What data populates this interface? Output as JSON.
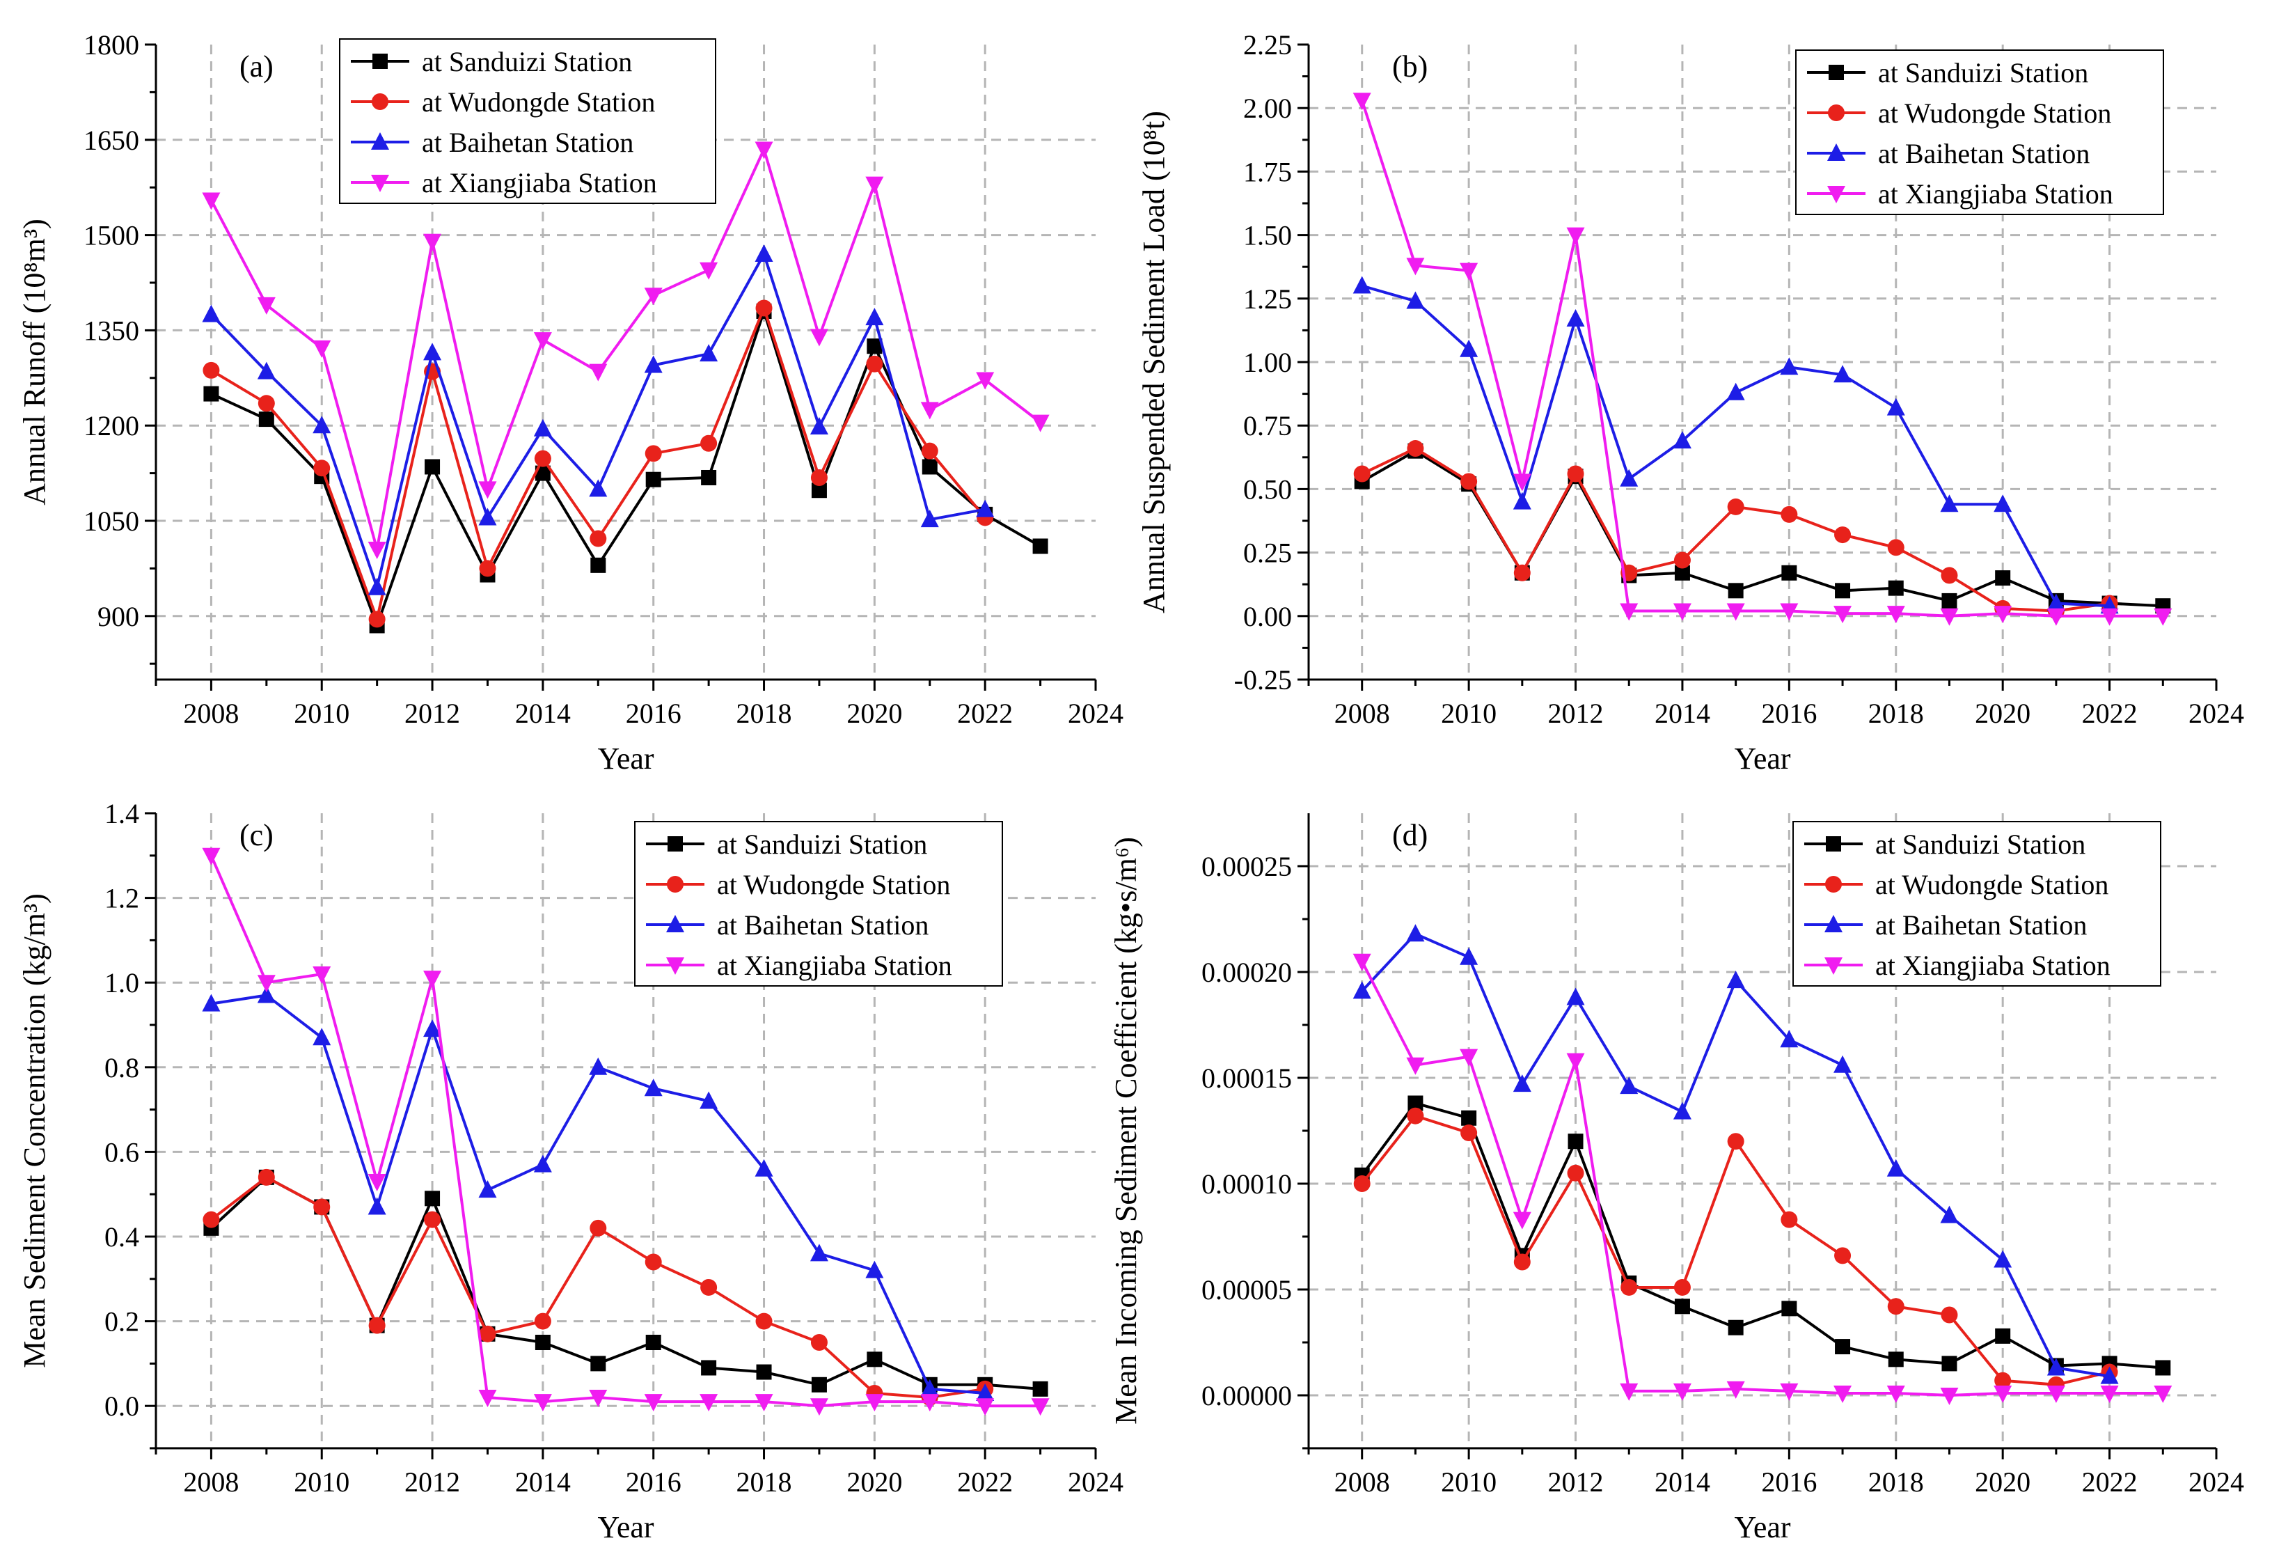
{
  "chart_data": [
    {
      "panel": "(a)",
      "type": "line",
      "xlabel": "Year",
      "ylabel": "Annual Runoff (10⁸m³)",
      "xlim": [
        2007,
        2024
      ],
      "ylim": [
        800,
        1800
      ],
      "xticks": [
        2008,
        2010,
        2012,
        2014,
        2016,
        2018,
        2020,
        2022,
        2024
      ],
      "yticks": [
        900,
        1050,
        1200,
        1350,
        1500,
        1650,
        1800
      ],
      "ytick_labels": [
        "900",
        "1050",
        "1200",
        "1350",
        "1500",
        "1650",
        "1800"
      ],
      "grid": true,
      "legend_position": "top-left",
      "series": [
        {
          "name": "at Sanduizi Station",
          "color": "#000000",
          "marker": "square",
          "x": [
            2008,
            2009,
            2010,
            2011,
            2012,
            2013,
            2014,
            2015,
            2016,
            2017,
            2018,
            2019,
            2020,
            2021,
            2022,
            2023
          ],
          "y": [
            1250,
            1210,
            1120,
            885,
            1135,
            965,
            1125,
            980,
            1115,
            1118,
            1380,
            1098,
            1325,
            1135,
            1060,
            1010
          ]
        },
        {
          "name": "at Wudongde Station",
          "color": "#e8221b",
          "marker": "circle",
          "x": [
            2008,
            2009,
            2010,
            2011,
            2012,
            2013,
            2014,
            2015,
            2016,
            2017,
            2018,
            2019,
            2020,
            2021,
            2022
          ],
          "y": [
            1287,
            1235,
            1133,
            895,
            1285,
            975,
            1148,
            1022,
            1156,
            1172,
            1385,
            1118,
            1297,
            1160,
            1055
          ]
        },
        {
          "name": "at Baihetan Station",
          "color": "#1d1de6",
          "marker": "triangle-up",
          "x": [
            2008,
            2009,
            2010,
            2011,
            2012,
            2013,
            2014,
            2015,
            2016,
            2017,
            2018,
            2019,
            2020,
            2021,
            2022
          ],
          "y": [
            1375,
            1285,
            1200,
            945,
            1315,
            1055,
            1195,
            1100,
            1295,
            1313,
            1470,
            1198,
            1370,
            1052,
            1068
          ]
        },
        {
          "name": "at Xiangjiaba Station",
          "color": "#f01cf0",
          "marker": "triangle-down",
          "x": [
            2008,
            2009,
            2010,
            2011,
            2012,
            2013,
            2014,
            2015,
            2016,
            2017,
            2018,
            2019,
            2020,
            2021,
            2022,
            2023
          ],
          "y": [
            1555,
            1390,
            1322,
            1005,
            1490,
            1100,
            1335,
            1285,
            1405,
            1445,
            1635,
            1340,
            1580,
            1225,
            1272,
            1205
          ]
        }
      ]
    },
    {
      "panel": "(b)",
      "type": "line",
      "xlabel": "Year",
      "ylabel": "Annual Suspended Sediment Load (10⁸t)",
      "xlim": [
        2007,
        2024
      ],
      "ylim": [
        -0.25,
        2.25
      ],
      "xticks": [
        2008,
        2010,
        2012,
        2014,
        2016,
        2018,
        2020,
        2022,
        2024
      ],
      "yticks": [
        -0.25,
        0,
        0.25,
        0.5,
        0.75,
        1.0,
        1.25,
        1.5,
        1.75,
        2.0,
        2.25
      ],
      "ytick_labels": [
        "-0.25",
        "0.00",
        "0.25",
        "0.50",
        "0.75",
        "1.00",
        "1.25",
        "1.50",
        "1.75",
        "2.00",
        "2.25"
      ],
      "grid": true,
      "legend_position": "top-right",
      "series": [
        {
          "name": "at Sanduizi Station",
          "color": "#000000",
          "marker": "square",
          "x": [
            2008,
            2009,
            2010,
            2011,
            2012,
            2013,
            2014,
            2015,
            2016,
            2017,
            2018,
            2019,
            2020,
            2021,
            2022,
            2023
          ],
          "y": [
            0.53,
            0.65,
            0.52,
            0.17,
            0.55,
            0.16,
            0.17,
            0.1,
            0.17,
            0.1,
            0.11,
            0.06,
            0.15,
            0.06,
            0.05,
            0.04
          ]
        },
        {
          "name": "at Wudongde Station",
          "color": "#e8221b",
          "marker": "circle",
          "x": [
            2008,
            2009,
            2010,
            2011,
            2012,
            2013,
            2014,
            2015,
            2016,
            2017,
            2018,
            2019,
            2020,
            2021,
            2022
          ],
          "y": [
            0.56,
            0.66,
            0.53,
            0.17,
            0.56,
            0.17,
            0.22,
            0.43,
            0.4,
            0.32,
            0.27,
            0.16,
            0.03,
            0.02,
            0.05
          ]
        },
        {
          "name": "at Baihetan Station",
          "color": "#1d1de6",
          "marker": "triangle-up",
          "x": [
            2008,
            2009,
            2010,
            2011,
            2012,
            2013,
            2014,
            2015,
            2016,
            2017,
            2018,
            2019,
            2020,
            2021,
            2022
          ],
          "y": [
            1.3,
            1.24,
            1.05,
            0.45,
            1.17,
            0.54,
            0.69,
            0.88,
            0.98,
            0.95,
            0.82,
            0.44,
            0.44,
            0.05,
            0.04
          ]
        },
        {
          "name": "at Xiangjiaba Station",
          "color": "#f01cf0",
          "marker": "triangle-down",
          "x": [
            2008,
            2009,
            2010,
            2011,
            2012,
            2013,
            2014,
            2015,
            2016,
            2017,
            2018,
            2019,
            2020,
            2021,
            2022,
            2023
          ],
          "y": [
            2.03,
            1.38,
            1.36,
            0.53,
            1.5,
            0.02,
            0.02,
            0.02,
            0.02,
            0.01,
            0.01,
            0.0,
            0.01,
            0.0,
            0.0,
            0.0
          ]
        }
      ]
    },
    {
      "panel": "(c)",
      "type": "line",
      "xlabel": "Year",
      "ylabel": "Mean Sediment Concentration (kg/m³)",
      "xlim": [
        2007,
        2024
      ],
      "ylim": [
        -0.1,
        1.4
      ],
      "xticks": [
        2008,
        2010,
        2012,
        2014,
        2016,
        2018,
        2020,
        2022,
        2024
      ],
      "yticks": [
        0,
        0.2,
        0.4,
        0.6,
        0.8,
        1.0,
        1.2,
        1.4
      ],
      "ytick_labels": [
        "0.0",
        "0.2",
        "0.4",
        "0.6",
        "0.8",
        "1.0",
        "1.2",
        "1.4"
      ],
      "grid": true,
      "legend_position": "top-right",
      "series": [
        {
          "name": "at Sanduizi Station",
          "color": "#000000",
          "marker": "square",
          "x": [
            2008,
            2009,
            2010,
            2011,
            2012,
            2013,
            2014,
            2015,
            2016,
            2017,
            2018,
            2019,
            2020,
            2021,
            2022,
            2023
          ],
          "y": [
            0.42,
            0.54,
            0.47,
            0.19,
            0.49,
            0.17,
            0.15,
            0.1,
            0.15,
            0.09,
            0.08,
            0.05,
            0.11,
            0.05,
            0.05,
            0.04
          ]
        },
        {
          "name": "at Wudongde Station",
          "color": "#e8221b",
          "marker": "circle",
          "x": [
            2008,
            2009,
            2010,
            2011,
            2012,
            2013,
            2014,
            2015,
            2016,
            2017,
            2018,
            2019,
            2020,
            2021,
            2022
          ],
          "y": [
            0.44,
            0.54,
            0.47,
            0.19,
            0.44,
            0.17,
            0.2,
            0.42,
            0.34,
            0.28,
            0.2,
            0.15,
            0.03,
            0.02,
            0.04
          ]
        },
        {
          "name": "at Baihetan Station",
          "color": "#1d1de6",
          "marker": "triangle-up",
          "x": [
            2008,
            2009,
            2010,
            2011,
            2012,
            2013,
            2014,
            2015,
            2016,
            2017,
            2018,
            2019,
            2020,
            2021,
            2022
          ],
          "y": [
            0.95,
            0.97,
            0.87,
            0.47,
            0.89,
            0.51,
            0.57,
            0.8,
            0.75,
            0.72,
            0.56,
            0.36,
            0.32,
            0.04,
            0.03
          ]
        },
        {
          "name": "at Xiangjiaba Station",
          "color": "#f01cf0",
          "marker": "triangle-down",
          "x": [
            2008,
            2009,
            2010,
            2011,
            2012,
            2013,
            2014,
            2015,
            2016,
            2017,
            2018,
            2019,
            2020,
            2021,
            2022,
            2023
          ],
          "y": [
            1.3,
            1.0,
            1.02,
            0.53,
            1.01,
            0.02,
            0.01,
            0.02,
            0.01,
            0.01,
            0.01,
            0.0,
            0.01,
            0.01,
            0.0,
            0.0
          ]
        }
      ]
    },
    {
      "panel": "(d)",
      "type": "line",
      "xlabel": "Year",
      "ylabel": "Mean Incoming Sediment Coefficient (kg•s/m⁶)",
      "xlim": [
        2007,
        2024
      ],
      "ylim": [
        -2.5e-05,
        0.000275
      ],
      "xticks": [
        2008,
        2010,
        2012,
        2014,
        2016,
        2018,
        2020,
        2022,
        2024
      ],
      "yticks": [
        0,
        5e-05,
        0.0001,
        0.00015,
        0.0002,
        0.00025
      ],
      "ytick_labels": [
        "0.00000",
        "0.00005",
        "0.00010",
        "0.00015",
        "0.00020",
        "0.00025"
      ],
      "grid": true,
      "legend_position": "top-right",
      "series": [
        {
          "name": "at Sanduizi Station",
          "color": "#000000",
          "marker": "square",
          "x": [
            2008,
            2009,
            2010,
            2011,
            2012,
            2013,
            2014,
            2015,
            2016,
            2017,
            2018,
            2019,
            2020,
            2021,
            2022,
            2023
          ],
          "y": [
            0.000104,
            0.000138,
            0.000131,
            6.6e-05,
            0.00012,
            5.3e-05,
            4.2e-05,
            3.2e-05,
            4.1e-05,
            2.3e-05,
            1.7e-05,
            1.5e-05,
            2.8e-05,
            1.4e-05,
            1.5e-05,
            1.3e-05
          ]
        },
        {
          "name": "at Wudongde Station",
          "color": "#e8221b",
          "marker": "circle",
          "x": [
            2008,
            2009,
            2010,
            2011,
            2012,
            2013,
            2014,
            2015,
            2016,
            2017,
            2018,
            2019,
            2020,
            2021,
            2022
          ],
          "y": [
            0.0001,
            0.000132,
            0.000124,
            6.3e-05,
            0.000105,
            5.1e-05,
            5.1e-05,
            0.00012,
            8.3e-05,
            6.6e-05,
            4.2e-05,
            3.8e-05,
            7e-06,
            5e-06,
            1.1e-05
          ]
        },
        {
          "name": "at Baihetan Station",
          "color": "#1d1de6",
          "marker": "triangle-up",
          "x": [
            2008,
            2009,
            2010,
            2011,
            2012,
            2013,
            2014,
            2015,
            2016,
            2017,
            2018,
            2019,
            2020,
            2021,
            2022
          ],
          "y": [
            0.000191,
            0.000218,
            0.000207,
            0.000147,
            0.000188,
            0.000146,
            0.000134,
            0.000196,
            0.000168,
            0.000156,
            0.000107,
            8.5e-05,
            6.4e-05,
            1.3e-05,
            9e-06
          ]
        },
        {
          "name": "at Xiangjiaba Station",
          "color": "#f01cf0",
          "marker": "triangle-down",
          "x": [
            2008,
            2009,
            2010,
            2011,
            2012,
            2013,
            2014,
            2015,
            2016,
            2017,
            2018,
            2019,
            2020,
            2021,
            2022,
            2023
          ],
          "y": [
            0.000205,
            0.000156,
            0.00016,
            8.3e-05,
            0.000158,
            2e-06,
            2e-06,
            3e-06,
            2e-06,
            1e-06,
            1e-06,
            0.0,
            1e-06,
            1e-06,
            1e-06,
            1e-06
          ]
        }
      ]
    }
  ]
}
